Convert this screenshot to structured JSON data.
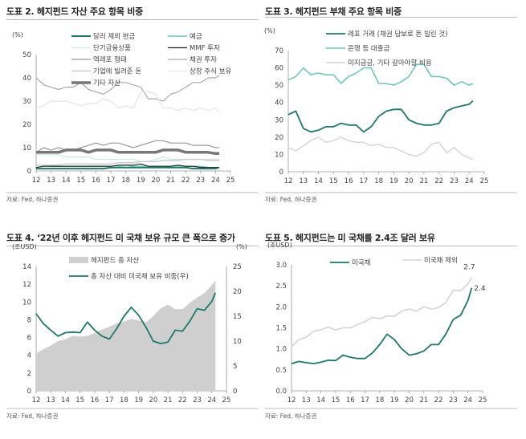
{
  "chart_data": [
    {
      "id": "c1",
      "type": "line",
      "title": "도표 2. 헤지펀드 자산 주요 항목 비중",
      "source": "자료: Fed, 하나증권",
      "yunit": "(%)",
      "ylim": [
        0,
        50
      ],
      "yticks": [
        0,
        10,
        20,
        30,
        40,
        50
      ],
      "xticks": [
        12,
        13,
        14,
        15,
        16,
        17,
        18,
        19,
        20,
        21,
        22,
        23,
        24,
        25
      ],
      "xlim": [
        12,
        25
      ],
      "x": [
        12,
        12.5,
        13,
        13.5,
        14,
        14.5,
        15,
        15.5,
        16,
        16.5,
        17,
        17.5,
        18,
        18.5,
        19,
        19.5,
        20,
        20.5,
        21,
        21.5,
        22,
        22.5,
        23,
        23.5,
        24,
        24.25
      ],
      "series": [
        {
          "name": "달러 제외 현금",
          "color": "#1e7a68",
          "width": 2,
          "values": [
            1,
            1,
            1,
            1,
            1,
            1,
            1,
            1,
            1,
            1,
            1.5,
            1.5,
            1.5,
            1.5,
            1.5,
            1.5,
            1.5,
            1.5,
            1.5,
            1.5,
            1.5,
            1,
            1,
            1,
            1,
            1.5
          ]
        },
        {
          "name": "예금",
          "color": "#6dc8b8",
          "width": 1.5,
          "values": [
            2.5,
            2.5,
            2,
            2,
            2,
            2,
            2,
            2,
            2,
            2,
            2,
            2,
            2.5,
            2,
            2,
            2,
            2,
            2,
            2,
            2,
            2,
            2,
            2,
            1.5,
            1.5,
            1.5
          ]
        },
        {
          "name": "단기금융상품",
          "color": "#c8ebe4",
          "width": 1.2,
          "values": [
            7,
            7,
            7,
            7,
            6,
            6,
            6,
            6,
            5,
            5,
            5,
            5,
            5,
            5,
            4,
            4,
            5,
            6,
            5,
            5,
            5,
            5,
            5,
            5,
            5,
            5
          ]
        },
        {
          "name": "MMF 투자",
          "color": "#222222",
          "width": 1.2,
          "values": [
            1.5,
            2,
            2,
            2,
            2,
            2,
            2,
            2,
            2,
            2,
            2,
            2.5,
            2.5,
            2.5,
            3,
            2,
            2,
            2,
            2,
            2.5,
            2,
            2,
            1.5,
            1.5,
            1.5,
            1.5
          ]
        },
        {
          "name": "역레포 형태",
          "color": "#999999",
          "width": 1.2,
          "values": [
            8,
            10,
            9,
            10,
            9,
            9,
            10,
            11,
            12,
            11,
            12,
            12,
            11,
            10,
            11,
            12,
            13,
            13,
            12,
            12,
            12,
            11,
            11,
            11,
            10,
            10
          ]
        },
        {
          "name": "채권 투자",
          "color": "#aaaaaa",
          "width": 1.2,
          "values": [
            40,
            37,
            36,
            35,
            36,
            36,
            38,
            35,
            34,
            33,
            35,
            38,
            38,
            37,
            36,
            31,
            31,
            30,
            33,
            34,
            36,
            38,
            38,
            40,
            40,
            41
          ]
        },
        {
          "name": "기업에 빌려준 돈",
          "color": "#cccccc",
          "width": 1.5,
          "values": [
            2.5,
            2.5,
            2.5,
            2.5,
            3,
            3,
            3,
            3,
            3,
            3,
            3,
            3.5,
            3.5,
            3.5,
            4,
            4,
            4,
            4.5,
            4.5,
            4.5,
            5,
            5,
            5,
            4.5,
            4.5,
            4.5
          ]
        },
        {
          "name": "상장 주식 보유",
          "color": "#e4e4e4",
          "width": 1.2,
          "values": [
            27,
            28,
            30,
            30,
            30,
            29,
            28,
            29,
            29,
            31,
            30,
            27,
            28,
            27,
            34,
            34,
            33,
            27,
            27,
            26,
            27,
            26,
            27,
            26,
            27,
            25
          ]
        },
        {
          "name": "기타 자산",
          "color": "#777777",
          "width": 3.5,
          "values": [
            8,
            8,
            8,
            8,
            9,
            9,
            9,
            8,
            9,
            9,
            9,
            8,
            8,
            8,
            8,
            8,
            8,
            9,
            9,
            9,
            8,
            8,
            8,
            8,
            7.5,
            7.5
          ]
        }
      ]
    },
    {
      "id": "c2",
      "type": "line",
      "title": "도표 3. 헤지펀드 부채 주요 항목 비중",
      "source": "자료: Fed, 하나증권",
      "yunit": "(%)",
      "ylim": [
        0,
        70
      ],
      "yticks": [
        0,
        10,
        20,
        30,
        40,
        50,
        60,
        70
      ],
      "xticks": [
        12,
        13,
        14,
        15,
        16,
        17,
        18,
        19,
        20,
        21,
        22,
        23,
        24,
        25
      ],
      "xlim": [
        12,
        25
      ],
      "x": [
        12,
        12.5,
        13,
        13.5,
        14,
        14.5,
        15,
        15.5,
        16,
        16.5,
        17,
        17.5,
        18,
        18.5,
        19,
        19.5,
        20,
        20.5,
        21,
        21.5,
        22,
        22.5,
        23,
        23.5,
        24,
        24.25
      ],
      "series": [
        {
          "name": "레포 거래 (채권 담보로 돈 빌린 것)",
          "color": "#1e7a68",
          "width": 1.8,
          "values": [
            33,
            35,
            25,
            23,
            24,
            26,
            26,
            28,
            27,
            27,
            23,
            26,
            32,
            35,
            36,
            36,
            30,
            28,
            27,
            27,
            28,
            35,
            37,
            38,
            39,
            41
          ]
        },
        {
          "name": "은행 등 대출금",
          "color": "#6dc8b8",
          "width": 1.6,
          "values": [
            53,
            55,
            60,
            56,
            57,
            56,
            56,
            51,
            55,
            57,
            60,
            60,
            51,
            51,
            50,
            52,
            55,
            62,
            62,
            55,
            55,
            54,
            50,
            52,
            50,
            51
          ]
        },
        {
          "name": "미지급금, 기타 갚아야할 비용",
          "color": "#d4d4d4",
          "width": 1.4,
          "values": [
            14,
            12,
            15,
            18,
            20,
            17,
            18,
            20,
            18,
            17,
            17,
            15,
            16,
            14,
            14,
            12,
            10,
            9,
            11,
            16,
            17,
            11,
            14,
            10,
            8,
            7
          ]
        }
      ]
    },
    {
      "id": "c3",
      "type": "area+line",
      "title": "도표 4. ‘22년 이후 헤지펀드 미 국채 보유 규모 큰 폭으로 증가",
      "source": "자료: Fed, 하나증권",
      "yunit": "(조USD)",
      "y2unit": "(%)",
      "ylim": [
        0,
        14
      ],
      "yticks": [
        0,
        2,
        4,
        6,
        8,
        10,
        12,
        14
      ],
      "y2lim": [
        0,
        25
      ],
      "y2ticks": [
        0,
        5,
        10,
        15,
        20,
        25
      ],
      "xticks": [
        12,
        13,
        14,
        15,
        16,
        17,
        18,
        19,
        20,
        21,
        22,
        23,
        24,
        25
      ],
      "xlim": [
        12,
        25
      ],
      "x": [
        12,
        12.5,
        13,
        13.5,
        14,
        14.5,
        15,
        15.5,
        16,
        16.5,
        17,
        17.5,
        18,
        18.5,
        19,
        19.5,
        20,
        20.5,
        21,
        21.5,
        22,
        22.5,
        23,
        23.5,
        24,
        24.25
      ],
      "series": [
        {
          "name": "헤지펀드 총 자산",
          "kind": "area",
          "axis": "left",
          "color": "#cfcfcf",
          "values": [
            4.2,
            4.7,
            5.1,
            5.6,
            5.8,
            6.2,
            6.1,
            6.2,
            6.5,
            6.9,
            7.2,
            7.6,
            7.8,
            8.1,
            7.9,
            7.7,
            8.4,
            9.3,
            9.7,
            9.2,
            9.2,
            9.9,
            10.5,
            11.0,
            11.9,
            12.4
          ]
        },
        {
          "name": "총 자산 대비 미국채 보유 비중(우)",
          "kind": "line",
          "axis": "right",
          "color": "#1e7a68",
          "width": 1.8,
          "values": [
            15.5,
            13.5,
            12.2,
            11,
            11.7,
            11.8,
            11.7,
            13.8,
            12.2,
            11,
            10.4,
            12.5,
            15,
            16.8,
            15.2,
            12.8,
            10,
            9.5,
            9.8,
            12.2,
            12,
            14,
            16.5,
            16.2,
            18,
            19.7
          ]
        }
      ]
    },
    {
      "id": "c4",
      "type": "line",
      "title": "도표 5. 헤지펀드는 미 국채를 2.4조 달러 보유",
      "source": "자료: Fed, 하나증권",
      "yunit": "(조USD)",
      "ylim": [
        0,
        3
      ],
      "yticks": [
        "0.0",
        "0.5",
        "1.0",
        "1.5",
        "2.0",
        "2.5",
        "3.0"
      ],
      "xticks": [
        12,
        13,
        14,
        15,
        16,
        17,
        18,
        19,
        20,
        21,
        22,
        23,
        24,
        25
      ],
      "xlim": [
        12,
        25
      ],
      "x": [
        12,
        12.5,
        13,
        13.5,
        14,
        14.5,
        15,
        15.5,
        16,
        16.5,
        17,
        17.5,
        18,
        18.5,
        19,
        19.5,
        20,
        20.5,
        21,
        21.5,
        22,
        22.5,
        23,
        23.5,
        24,
        24.25
      ],
      "series": [
        {
          "name": "미국채",
          "color": "#1e7a68",
          "width": 1.8,
          "label": "2.4",
          "values": [
            0.65,
            0.7,
            0.67,
            0.65,
            0.68,
            0.73,
            0.72,
            0.85,
            0.8,
            0.77,
            0.77,
            0.9,
            1.1,
            1.35,
            1.22,
            1.0,
            0.85,
            0.88,
            0.95,
            1.1,
            1.1,
            1.35,
            1.7,
            1.8,
            2.15,
            2.45
          ]
        },
        {
          "name": "미국채 제외",
          "color": "#d4d4d4",
          "width": 1.6,
          "label": "2.7",
          "values": [
            1.05,
            1.22,
            1.28,
            1.42,
            1.45,
            1.52,
            1.45,
            1.5,
            1.5,
            1.58,
            1.65,
            1.75,
            1.72,
            1.78,
            1.78,
            1.9,
            1.95,
            1.9,
            2.0,
            1.95,
            1.98,
            2.1,
            2.4,
            2.38,
            2.55,
            2.7
          ]
        }
      ]
    }
  ]
}
